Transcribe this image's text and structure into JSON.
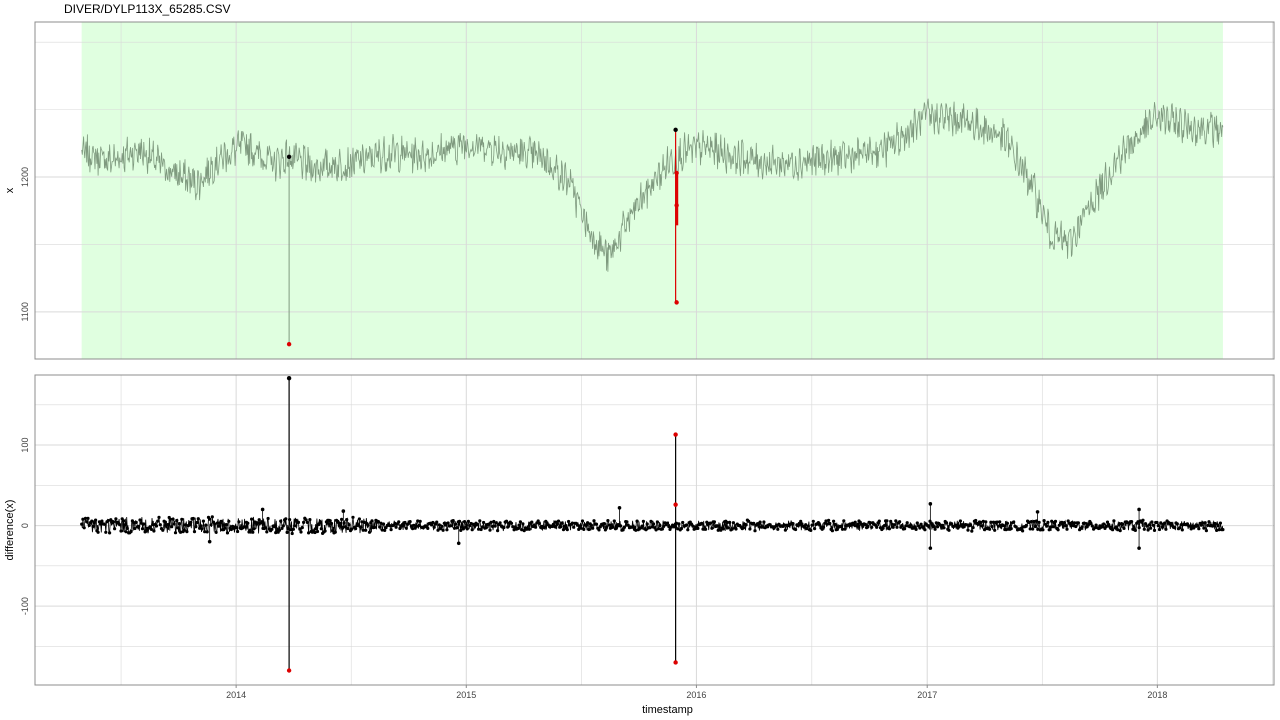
{
  "title": "DIVER/DYLP113X_65285.CSV",
  "colors": {
    "shade": "#e0ffe0",
    "series": "#7f9a7f",
    "outlier": "#dd0000",
    "point": "#000000",
    "grid": "#d9d9d9",
    "frame": "#8c8c8c"
  },
  "chart_data": [
    {
      "type": "line",
      "xlabel": "",
      "ylabel": "x",
      "y_ticks": [
        1100,
        1200
      ],
      "y_tick_labels": [
        "1100",
        "1200"
      ],
      "ylim": [
        1065,
        1315
      ],
      "xlim": [
        "2013-02-16",
        "2018-07-05"
      ],
      "x_ticks": [
        "2014-01-01",
        "2015-01-01",
        "2016-01-01",
        "2017-01-01",
        "2018-01-01"
      ],
      "shaded_range": [
        "2013-05-01",
        "2018-04-15"
      ],
      "grid": true,
      "profile": [
        [
          "2013-05-01",
          1218
        ],
        [
          "2013-06-15",
          1212
        ],
        [
          "2013-08-01",
          1220
        ],
        [
          "2013-09-15",
          1205
        ],
        [
          "2013-11-01",
          1195
        ],
        [
          "2013-12-01",
          1212
        ],
        [
          "2014-01-15",
          1224
        ],
        [
          "2014-03-01",
          1210
        ],
        [
          "2014-03-26",
          1215
        ],
        [
          "2014-05-01",
          1207
        ],
        [
          "2014-07-01",
          1210
        ],
        [
          "2014-09-01",
          1218
        ],
        [
          "2014-11-01",
          1216
        ],
        [
          "2015-01-01",
          1225
        ],
        [
          "2015-03-01",
          1220
        ],
        [
          "2015-05-01",
          1215
        ],
        [
          "2015-06-15",
          1195
        ],
        [
          "2015-07-15",
          1160
        ],
        [
          "2015-08-15",
          1140
        ],
        [
          "2015-09-15",
          1168
        ],
        [
          "2015-10-15",
          1190
        ],
        [
          "2015-11-20",
          1212
        ],
        [
          "2015-12-10",
          1218
        ],
        [
          "2016-01-15",
          1222
        ],
        [
          "2016-03-01",
          1215
        ],
        [
          "2016-05-01",
          1210
        ],
        [
          "2016-07-01",
          1212
        ],
        [
          "2016-09-01",
          1215
        ],
        [
          "2016-11-01",
          1222
        ],
        [
          "2017-01-01",
          1245
        ],
        [
          "2017-03-01",
          1242
        ],
        [
          "2017-05-01",
          1230
        ],
        [
          "2017-06-15",
          1195
        ],
        [
          "2017-07-15",
          1158
        ],
        [
          "2017-08-15",
          1150
        ],
        [
          "2017-09-15",
          1178
        ],
        [
          "2017-11-01",
          1215
        ],
        [
          "2018-01-01",
          1245
        ],
        [
          "2018-02-15",
          1238
        ],
        [
          "2018-04-15",
          1235
        ]
      ],
      "points": [
        {
          "x": "2014-03-26",
          "y": 1215,
          "role": "normal"
        },
        {
          "x": "2014-03-26",
          "y": 1076,
          "role": "outlier"
        },
        {
          "x": "2015-11-29",
          "y": 1235,
          "role": "normal"
        },
        {
          "x": "2015-11-29",
          "y": 1203,
          "role": "outlier"
        },
        {
          "x": "2015-11-29",
          "y": 1179,
          "role": "outlier"
        },
        {
          "x": "2015-11-29",
          "y": 1107,
          "role": "outlier"
        }
      ]
    },
    {
      "type": "scatter",
      "xlabel": "timestamp",
      "ylabel": "difference(x)",
      "y_ticks": [
        -100,
        0,
        100
      ],
      "y_tick_labels": [
        "-100",
        "0",
        "100"
      ],
      "ylim": [
        -198,
        187
      ],
      "xlim": [
        "2013-02-16",
        "2018-07-05"
      ],
      "x_ticks": [
        "2014-01-01",
        "2015-01-01",
        "2016-01-01",
        "2017-01-01",
        "2018-01-01"
      ],
      "x_tick_labels": [
        "2014",
        "2015",
        "2016",
        "2017",
        "2018"
      ],
      "grid": true,
      "spikes": [
        {
          "x": "2014-03-26",
          "from": 183,
          "to": -180
        },
        {
          "x": "2015-11-29",
          "from": 113,
          "to": -170
        }
      ],
      "points": [
        {
          "x": "2014-03-26",
          "y": 183,
          "role": "normal"
        },
        {
          "x": "2014-03-26",
          "y": -180,
          "role": "outlier"
        },
        {
          "x": "2015-11-29",
          "y": 113,
          "role": "outlier"
        },
        {
          "x": "2015-11-29",
          "y": 26,
          "role": "outlier"
        },
        {
          "x": "2015-11-29",
          "y": -170,
          "role": "outlier"
        }
      ],
      "extra_points": [
        {
          "x": "2017-01-06",
          "y": 27
        },
        {
          "x": "2017-01-06",
          "y": -28
        },
        {
          "x": "2017-12-03",
          "y": 20
        },
        {
          "x": "2017-12-03",
          "y": -28
        },
        {
          "x": "2015-09-01",
          "y": 22
        },
        {
          "x": "2014-06-20",
          "y": 18
        },
        {
          "x": "2013-11-20",
          "y": -20
        },
        {
          "x": "2014-02-12",
          "y": 20
        },
        {
          "x": "2017-06-25",
          "y": 17
        },
        {
          "x": "2014-12-20",
          "y": -22
        }
      ]
    }
  ]
}
